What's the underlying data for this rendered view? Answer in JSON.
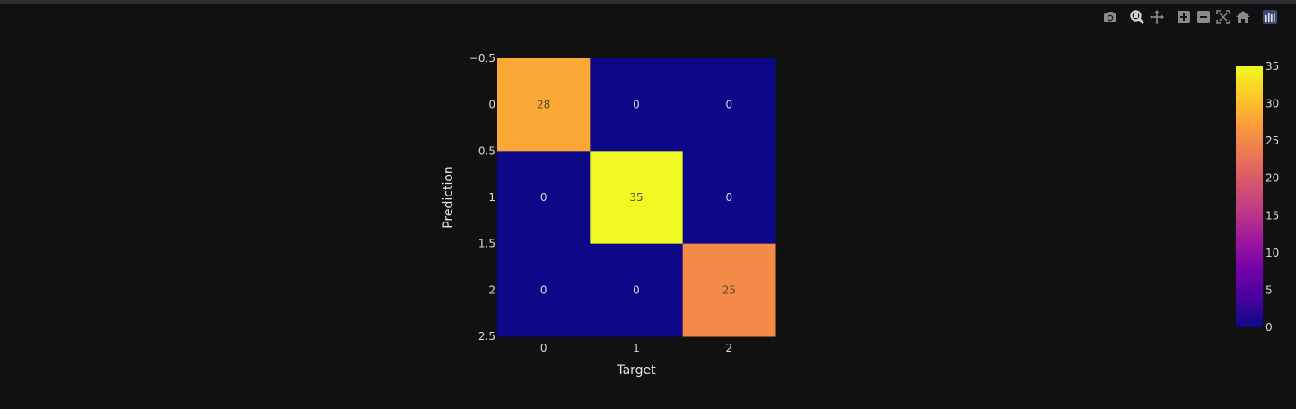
{
  "modebar": {
    "buttons": [
      {
        "name": "camera-icon"
      },
      {
        "name": "zoom-icon"
      },
      {
        "name": "pan-icon"
      },
      {
        "name": "zoom-in-icon"
      },
      {
        "name": "zoom-out-icon"
      },
      {
        "name": "autoscale-icon"
      },
      {
        "name": "home-icon"
      },
      {
        "name": "plotly-logo-icon"
      }
    ]
  },
  "chart_data": {
    "type": "heatmap",
    "xlabel": "Target",
    "ylabel": "Prediction",
    "x_categories": [
      "0",
      "1",
      "2"
    ],
    "y_ticks": [
      "−0.5",
      "0",
      "0.5",
      "1",
      "1.5",
      "2",
      "2.5"
    ],
    "y_range": [
      -0.5,
      2.5
    ],
    "z": [
      [
        28,
        0,
        0
      ],
      [
        0,
        35,
        0
      ],
      [
        0,
        0,
        25
      ]
    ],
    "colorscale": "plasma",
    "colorbar": {
      "min": 0,
      "max": 35,
      "ticks": [
        0,
        5,
        10,
        15,
        20,
        25,
        30,
        35
      ]
    },
    "colors": {
      "background": "#111111",
      "cell_low": "#0d0887",
      "cell_high": "#f0f921"
    }
  }
}
